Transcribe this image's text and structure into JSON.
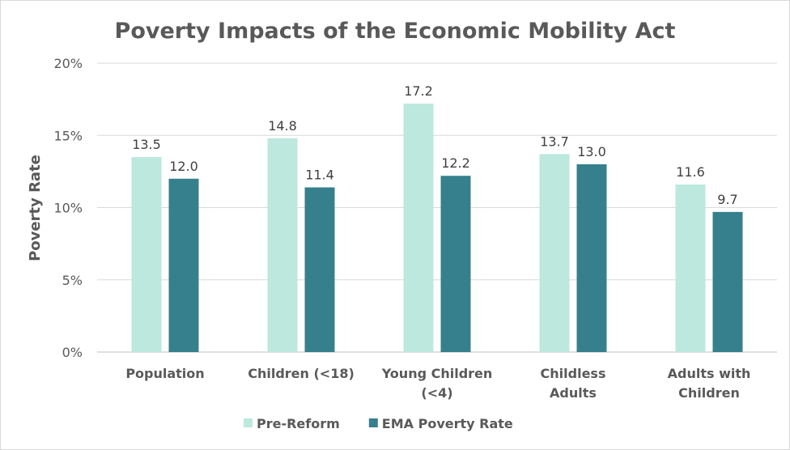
{
  "chart_data": {
    "type": "bar",
    "title": "Poverty Impacts of the Economic Mobility Act",
    "xlabel": "",
    "ylabel": "Poverty Rate",
    "ylim": [
      0,
      20
    ],
    "yticks": [
      "0%",
      "5%",
      "10%",
      "15%",
      "20%"
    ],
    "ytick_values": [
      0,
      5,
      10,
      15,
      20
    ],
    "grid": true,
    "legend_position": "bottom",
    "categories": [
      [
        "Population"
      ],
      [
        "Children (<18)"
      ],
      [
        "Young Children",
        "(<4)"
      ],
      [
        "Childless",
        "Adults"
      ],
      [
        "Adults with",
        "Children"
      ]
    ],
    "series": [
      {
        "name": "Pre-Reform",
        "color": "#bce8de",
        "values": [
          13.5,
          14.8,
          17.2,
          13.7,
          11.6
        ],
        "labels": [
          "13.5",
          "14.8",
          "17.2",
          "13.7",
          "11.6"
        ]
      },
      {
        "name": "EMA Poverty Rate",
        "color": "#36808d",
        "values": [
          12.0,
          11.4,
          12.2,
          13.0,
          9.7
        ],
        "labels": [
          "12.0",
          "11.4",
          "12.2",
          "13.0",
          "9.7"
        ]
      }
    ]
  }
}
